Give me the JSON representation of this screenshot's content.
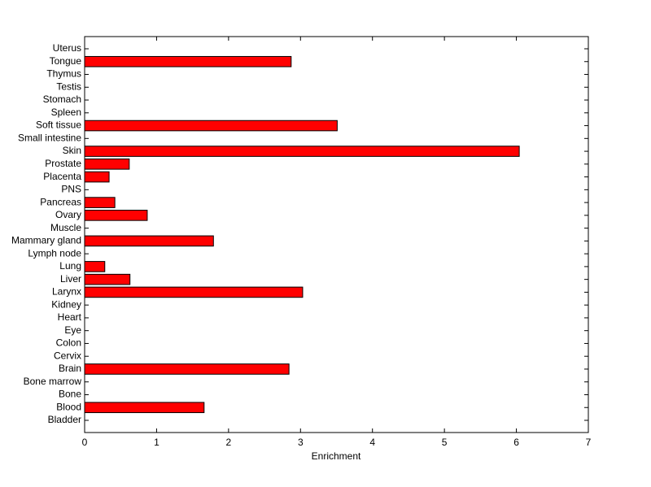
{
  "chart_data": {
    "type": "barh",
    "xlabel": "Enrichment",
    "categories": [
      "Bladder",
      "Blood",
      "Bone",
      "Bone marrow",
      "Brain",
      "Cervix",
      "Colon",
      "Eye",
      "Heart",
      "Kidney",
      "Larynx",
      "Liver",
      "Lung",
      "Lymph node",
      "Mammary gland",
      "Muscle",
      "Ovary",
      "Pancreas",
      "PNS",
      "Placenta",
      "Prostate",
      "Skin",
      "Small intestine",
      "Soft tissue",
      "Spleen",
      "Stomach",
      "Testis",
      "Thymus",
      "Tongue",
      "Uterus"
    ],
    "values": [
      0,
      1.66,
      0,
      0,
      2.84,
      0,
      0,
      0,
      0,
      0,
      3.03,
      0.63,
      0.28,
      0,
      1.79,
      0,
      0.87,
      0.42,
      0,
      0.34,
      0.62,
      6.04,
      0,
      3.51,
      0,
      0,
      0,
      0,
      2.87,
      0
    ],
    "color": "#ff0000",
    "xlim": [
      0,
      7
    ],
    "xticks": [
      0,
      1,
      2,
      3,
      4,
      5,
      6,
      7
    ]
  }
}
